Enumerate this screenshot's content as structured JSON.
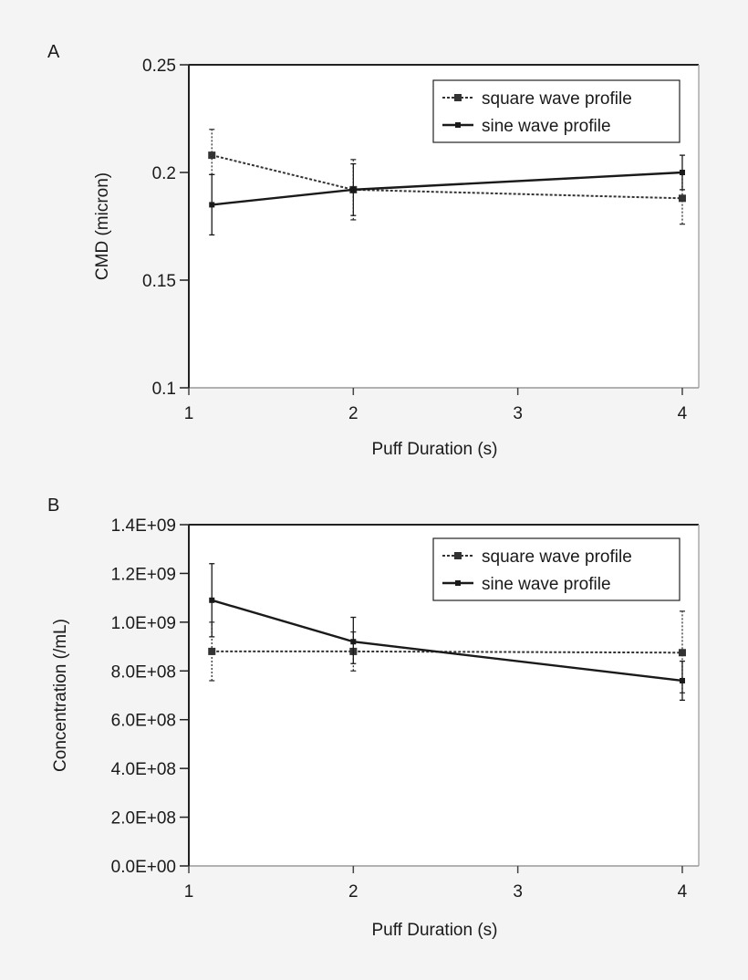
{
  "chart_data": [
    {
      "panel_label": "A",
      "type": "line",
      "xlabel": "Puff Duration (s)",
      "ylabel": "CMD (micron)",
      "xlim": [
        1,
        4.1
      ],
      "ylim": [
        0.1,
        0.25
      ],
      "x_ticks": [
        1,
        2,
        3,
        4
      ],
      "x_tick_labels": [
        "1",
        "2",
        "3",
        "4"
      ],
      "y_ticks": [
        0.1,
        0.15,
        0.2,
        0.25
      ],
      "y_tick_labels": [
        "0.1",
        "0.15",
        "0.2",
        "0.25"
      ],
      "legend_position": "top-right",
      "series": [
        {
          "name": "square wave profile",
          "style": "dotted",
          "marker": "square",
          "color": "#333333",
          "x": [
            1.14,
            2,
            4
          ],
          "y": [
            0.208,
            0.192,
            0.188
          ],
          "err_low": [
            0.199,
            0.178,
            0.176
          ],
          "err_high": [
            0.22,
            0.206,
            0.2
          ]
        },
        {
          "name": "sine wave profile",
          "style": "solid",
          "marker": "square",
          "color": "#1a1a1a",
          "x": [
            1.14,
            2,
            4
          ],
          "y": [
            0.185,
            0.192,
            0.2
          ],
          "err_low": [
            0.171,
            0.18,
            0.192
          ],
          "err_high": [
            0.199,
            0.204,
            0.208
          ]
        }
      ]
    },
    {
      "panel_label": "B",
      "type": "line",
      "xlabel": "Puff Duration (s)",
      "ylabel": "Concentration (/mL)",
      "xlim": [
        1,
        4.1
      ],
      "ylim": [
        0,
        1400000000
      ],
      "x_ticks": [
        1,
        2,
        3,
        4
      ],
      "x_tick_labels": [
        "1",
        "2",
        "3",
        "4"
      ],
      "y_ticks": [
        0,
        200000000,
        400000000,
        600000000,
        800000000,
        1000000000,
        1200000000,
        1400000000
      ],
      "y_tick_labels": [
        "0.0E+00",
        "2.0E+08",
        "4.0E+08",
        "6.0E+08",
        "8.0E+08",
        "1.0E+09",
        "1.2E+09",
        "1.4E+09"
      ],
      "legend_position": "top-right",
      "series": [
        {
          "name": "square wave profile",
          "style": "dotted",
          "marker": "square",
          "color": "#333333",
          "x": [
            1.14,
            2,
            4
          ],
          "y": [
            880000000,
            880000000,
            875000000
          ],
          "err_low": [
            760000000,
            800000000,
            710000000
          ],
          "err_high": [
            1000000000,
            960000000,
            1045000000
          ]
        },
        {
          "name": "sine wave profile",
          "style": "solid",
          "marker": "square",
          "color": "#1a1a1a",
          "x": [
            1.14,
            2,
            4
          ],
          "y": [
            1090000000,
            920000000,
            760000000
          ],
          "err_low": [
            940000000,
            830000000,
            680000000
          ],
          "err_high": [
            1240000000,
            1020000000,
            840000000
          ]
        }
      ]
    }
  ]
}
